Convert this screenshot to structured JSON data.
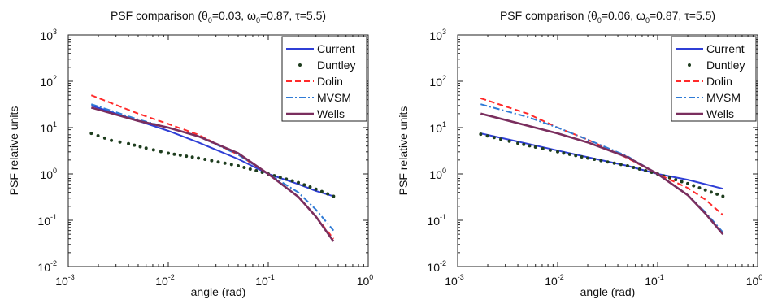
{
  "chart_data": [
    {
      "type": "line",
      "title": "PSF comparison (θ0=0.03, ω0=0.87, τ=5.5)",
      "title_parts": {
        "prefix": "PSF comparison (",
        "theta": "θ",
        "theta_sub": "0",
        "theta_val": "=0.03, ",
        "omega": "ω",
        "omega_sub": "0",
        "rest": "=0.87, τ=5.5)"
      },
      "xlabel": "angle (rad)",
      "ylabel": "PSF relative units",
      "xscale": "log",
      "yscale": "log",
      "xlim": [
        0.001,
        1
      ],
      "ylim": [
        0.01,
        1000
      ],
      "x_ticks": [
        {
          "base": "10",
          "exp": "-3"
        },
        {
          "base": "10",
          "exp": "-2"
        },
        {
          "base": "10",
          "exp": "-1"
        },
        {
          "base": "10",
          "exp": "0"
        }
      ],
      "y_ticks": [
        {
          "base": "10",
          "exp": "-2"
        },
        {
          "base": "10",
          "exp": "-1"
        },
        {
          "base": "10",
          "exp": "0"
        },
        {
          "base": "10",
          "exp": "1"
        },
        {
          "base": "10",
          "exp": "2"
        },
        {
          "base": "10",
          "exp": "3"
        }
      ],
      "legend_position": "top-right",
      "grid": false,
      "series": [
        {
          "name": "Current",
          "style": "solid",
          "color": "#2f3fd6",
          "x": [
            0.0017,
            0.005,
            0.01,
            0.02,
            0.05,
            0.1,
            0.2,
            0.3,
            0.45
          ],
          "y": [
            30,
            14,
            8.5,
            4.8,
            2.1,
            1.0,
            0.6,
            0.43,
            0.33
          ]
        },
        {
          "name": "Duntley",
          "style": "dots",
          "color": "#1e3d1e",
          "x": [
            0.0017,
            0.0027,
            0.004,
            0.006,
            0.01,
            0.02,
            0.05,
            0.1,
            0.2,
            0.3,
            0.45
          ],
          "y": [
            7.5,
            5.3,
            4.5,
            3.6,
            2.8,
            2.2,
            1.5,
            1.0,
            0.65,
            0.47,
            0.33
          ]
        },
        {
          "name": "Dolin",
          "style": "dashed",
          "color": "#ff2a2a",
          "x": [
            0.0017,
            0.005,
            0.01,
            0.02,
            0.05,
            0.1,
            0.2,
            0.3,
            0.45
          ],
          "y": [
            50,
            20,
            12,
            7,
            2.6,
            1.0,
            0.32,
            0.12,
            0.04
          ]
        },
        {
          "name": "MVSM",
          "style": "dashdot",
          "color": "#2f7bd6",
          "x": [
            0.0017,
            0.005,
            0.01,
            0.02,
            0.05,
            0.1,
            0.2,
            0.3,
            0.45
          ],
          "y": [
            32,
            15,
            10,
            6.5,
            2.6,
            1.0,
            0.4,
            0.17,
            0.06
          ]
        },
        {
          "name": "Wells",
          "style": "solid",
          "color": "#7a2e5e",
          "x": [
            0.0017,
            0.005,
            0.01,
            0.02,
            0.05,
            0.1,
            0.2,
            0.3,
            0.45
          ],
          "y": [
            27,
            14,
            10,
            6.5,
            2.8,
            1.0,
            0.32,
            0.12,
            0.035
          ]
        }
      ]
    },
    {
      "type": "line",
      "title": "PSF comparison (θ0=0.06, ω0=0.87, τ=5.5)",
      "title_parts": {
        "prefix": "PSF comparison (",
        "theta": "θ",
        "theta_sub": "0",
        "theta_val": "=0.06, ",
        "omega": "ω",
        "omega_sub": "0",
        "rest": "=0.87, τ=5.5)"
      },
      "xlabel": "angle (rad)",
      "ylabel": "PSF relative units",
      "xscale": "log",
      "yscale": "log",
      "xlim": [
        0.001,
        1
      ],
      "ylim": [
        0.01,
        1000
      ],
      "x_ticks": [
        {
          "base": "10",
          "exp": "-3"
        },
        {
          "base": "10",
          "exp": "-2"
        },
        {
          "base": "10",
          "exp": "-1"
        },
        {
          "base": "10",
          "exp": "0"
        }
      ],
      "y_ticks": [
        {
          "base": "10",
          "exp": "-2"
        },
        {
          "base": "10",
          "exp": "-1"
        },
        {
          "base": "10",
          "exp": "0"
        },
        {
          "base": "10",
          "exp": "1"
        },
        {
          "base": "10",
          "exp": "2"
        },
        {
          "base": "10",
          "exp": "3"
        }
      ],
      "legend_position": "top-right",
      "grid": false,
      "series": [
        {
          "name": "Current",
          "style": "solid",
          "color": "#2f3fd6",
          "x": [
            0.0017,
            0.005,
            0.01,
            0.02,
            0.05,
            0.1,
            0.2,
            0.3,
            0.45
          ],
          "y": [
            7.5,
            4.5,
            3.2,
            2.3,
            1.5,
            1.0,
            0.75,
            0.6,
            0.48
          ]
        },
        {
          "name": "Duntley",
          "style": "dots",
          "color": "#1e3d1e",
          "x": [
            0.0017,
            0.0027,
            0.004,
            0.006,
            0.01,
            0.02,
            0.05,
            0.1,
            0.2,
            0.3,
            0.45
          ],
          "y": [
            7.2,
            5.6,
            4.6,
            3.8,
            3.0,
            2.2,
            1.5,
            1.0,
            0.62,
            0.45,
            0.33
          ]
        },
        {
          "name": "Dolin",
          "style": "dashed",
          "color": "#ff2a2a",
          "x": [
            0.0017,
            0.005,
            0.01,
            0.02,
            0.05,
            0.1,
            0.2,
            0.3,
            0.45
          ],
          "y": [
            43,
            20,
            10,
            5.5,
            2.2,
            1.0,
            0.5,
            0.28,
            0.13
          ]
        },
        {
          "name": "MVSM",
          "style": "dashdot",
          "color": "#2f7bd6",
          "x": [
            0.0017,
            0.005,
            0.01,
            0.02,
            0.05,
            0.1,
            0.2,
            0.3,
            0.45
          ],
          "y": [
            32,
            17,
            10,
            5.5,
            2.4,
            1.0,
            0.35,
            0.15,
            0.055
          ]
        },
        {
          "name": "Wells",
          "style": "solid",
          "color": "#7a2e5e",
          "x": [
            0.0017,
            0.005,
            0.01,
            0.02,
            0.05,
            0.1,
            0.2,
            0.3,
            0.45
          ],
          "y": [
            20,
            11,
            7.5,
            4.8,
            2.3,
            1.0,
            0.35,
            0.14,
            0.05
          ]
        }
      ]
    }
  ]
}
